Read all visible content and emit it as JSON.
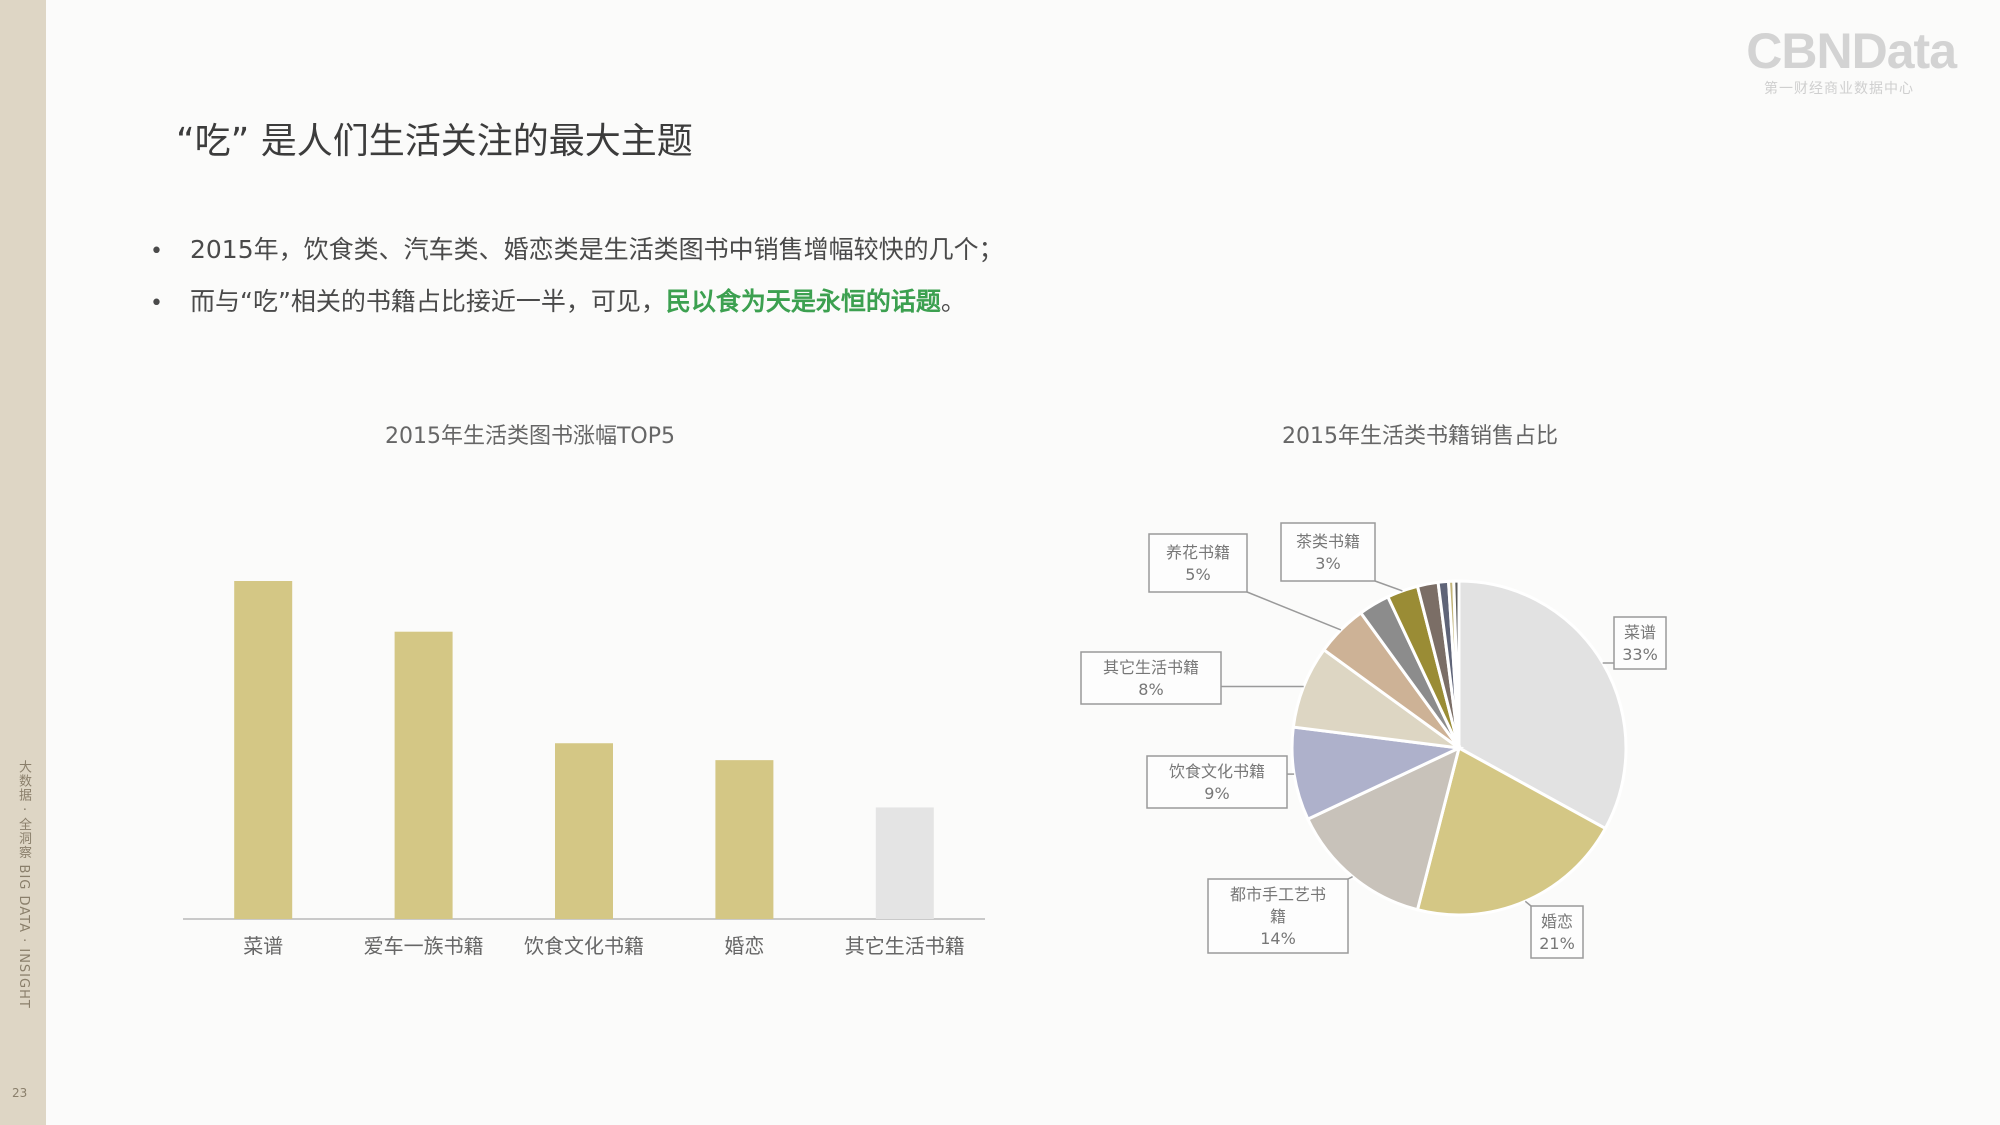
{
  "sidebar": {
    "vertical_text": "大数据 · 全洞察   BIG DATA · INSIGHT",
    "page_number": "23"
  },
  "logo": {
    "main": "CBNData",
    "sub": "第一财经商业数据中心"
  },
  "title": "“吃”  是人们生活关注的最大主题",
  "bullets": [
    {
      "text": "2015年，饮食类、汽车类、婚恋类是生活类图书中销售增幅较快的几个；"
    },
    {
      "text": "而与“吃”相关的书籍占比接近一半，可见，",
      "highlight": "民以食为天是永恒的话题",
      "tail": "。"
    }
  ],
  "colors": {
    "accent": "#3ca050",
    "bar": "#d4c785",
    "bar_muted": "#e4e4e4",
    "sidebar": "#ded6c5"
  },
  "chart_data": [
    {
      "type": "bar",
      "title": "2015年生活类图书涨幅TOP5",
      "categories": [
        "菜谱",
        "爱车一族书籍",
        "饮食文化书籍",
        "婚恋",
        "其它生活书籍"
      ],
      "values": [
        100,
        85,
        52,
        47,
        33
      ],
      "value_note": "relative heights, no axis values shown",
      "ylim": [
        0,
        100
      ],
      "colors": [
        "#d4c785",
        "#d4c785",
        "#d4c785",
        "#d4c785",
        "#e4e4e4"
      ]
    },
    {
      "type": "pie",
      "title": "2015年生活类书籍销售占比",
      "slices": [
        {
          "label": "菜谱",
          "value": 33,
          "display": "33%",
          "color": "#e2e2e2"
        },
        {
          "label": "婚恋",
          "value": 21,
          "display": "21%",
          "color": "#d4c785"
        },
        {
          "label": "都市手工艺书籍",
          "value": 14,
          "display": "14%",
          "color": "#c8c2ba"
        },
        {
          "label": "饮食文化书籍",
          "value": 9,
          "display": "9%",
          "color": "#aeb1cb"
        },
        {
          "label": "其它生活书籍",
          "value": 8,
          "display": "8%",
          "color": "#ddd6c3"
        },
        {
          "label": "养花书籍",
          "value": 5,
          "display": "5%",
          "color": "#cdb296"
        },
        {
          "label": "",
          "value": 3,
          "display": "",
          "color": "#8c8c8c"
        },
        {
          "label": "茶类书籍",
          "value": 3,
          "display": "3%",
          "color": "#9a8c35"
        },
        {
          "label": "",
          "value": 2,
          "display": "",
          "color": "#7b6e66"
        },
        {
          "label": "",
          "value": 1,
          "display": "",
          "color": "#5f6478"
        },
        {
          "label": "",
          "value": 0.5,
          "display": "",
          "color": "#c3b57a"
        },
        {
          "label": "",
          "value": 0.5,
          "display": "",
          "color": "#5a5a5a"
        }
      ]
    }
  ]
}
